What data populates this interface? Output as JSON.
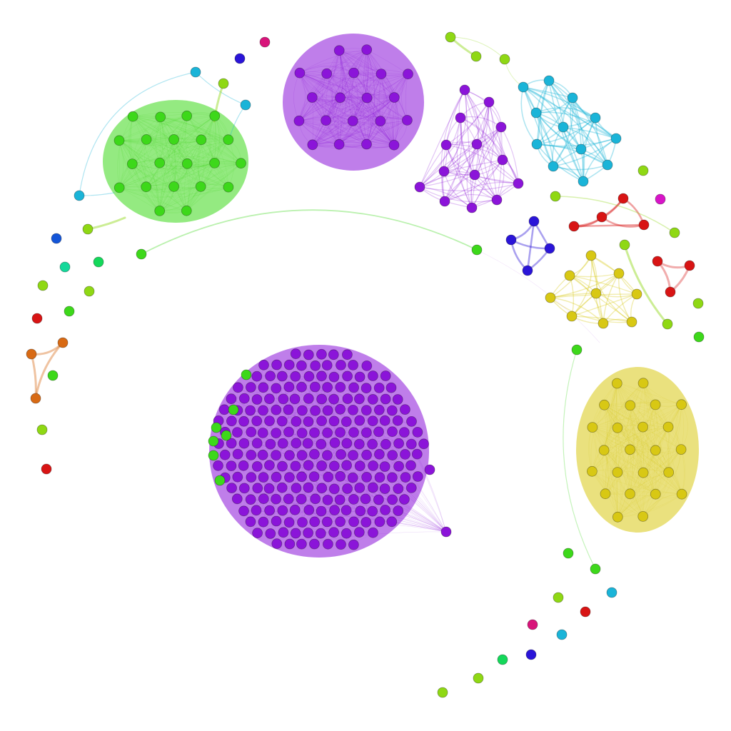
{
  "diagram": {
    "type": "network-graph",
    "labels_visible": false,
    "palette": {
      "purple": "#8b14d9",
      "green": "#3dd81a",
      "yellow": "#d8c814",
      "cyan": "#1ab4d8",
      "blue": "#2a14d8",
      "red": "#d81414",
      "orange": "#d86a14",
      "lime": "#8fd814",
      "teal": "#14d89a",
      "pink": "#d8147a",
      "magenta": "#d814c8",
      "royal": "#1455d8",
      "emerald": "#14d85a"
    },
    "clusters": [
      {
        "name": "large-purple",
        "color": "purple",
        "size": "largest"
      },
      {
        "name": "purple-top",
        "color": "purple",
        "size": "large"
      },
      {
        "name": "purple-small",
        "color": "purple",
        "size": "medium"
      },
      {
        "name": "green",
        "color": "green",
        "size": "large"
      },
      {
        "name": "yellow",
        "color": "yellow",
        "size": "large"
      },
      {
        "name": "cyan",
        "color": "cyan",
        "size": "medium"
      },
      {
        "name": "yellow-small",
        "color": "yellow",
        "size": "small"
      },
      {
        "name": "red-group",
        "color": "red",
        "size": "small"
      },
      {
        "name": "red-trio",
        "color": "red",
        "size": "small"
      },
      {
        "name": "blue-group",
        "color": "blue",
        "size": "small"
      },
      {
        "name": "orange-trio",
        "color": "orange",
        "size": "small"
      }
    ],
    "isolated_nodes": [
      "pink",
      "blue",
      "royal",
      "teal",
      "emerald",
      "lime",
      "lime",
      "green",
      "red",
      "green",
      "lime",
      "red",
      "lime",
      "magenta",
      "lime",
      "green",
      "green",
      "lime",
      "cyan",
      "red",
      "pink",
      "cyan",
      "emerald",
      "blue",
      "lime",
      "lime"
    ]
  }
}
